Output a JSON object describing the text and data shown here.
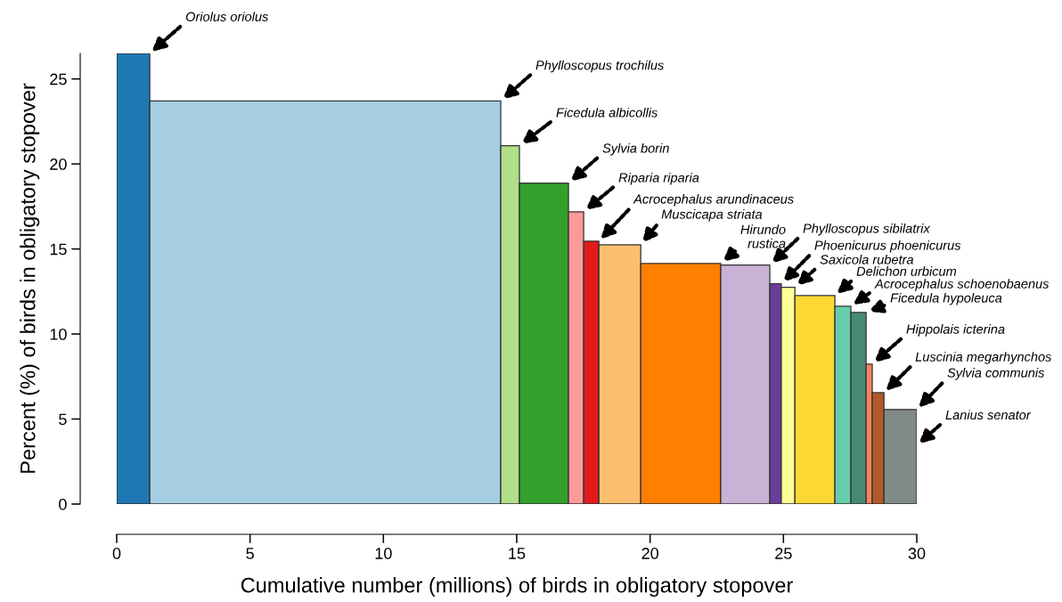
{
  "chart_data": {
    "type": "histogram",
    "xlabel": "Cumulative number (millions) of birds in obligatory stopover",
    "ylabel": "Percent (%) of birds in obligatory stopover",
    "bins": [
      0,
      1.24,
      14.4,
      15.1,
      16.94,
      17.51,
      18.08,
      19.65,
      22.65,
      24.49,
      24.92,
      25.43,
      26.93,
      27.53,
      28.1,
      28.33,
      28.77,
      30.0
    ],
    "values": [
      26.5,
      23.7,
      21.07,
      18.87,
      17.19,
      15.46,
      15.25,
      14.15,
      14.05,
      12.95,
      12.74,
      12.26,
      11.63,
      11.27,
      8.23,
      6.55,
      5.56
    ],
    "colors": [
      "#1f78b4",
      "#a6cee3",
      "#b2df8a",
      "#33a02c",
      "#fb9a99",
      "#e31a1c",
      "#fdbf6f",
      "#ff7f00",
      "#cab2d6",
      "#6a3d9a",
      "#ffff99",
      "#fdd835",
      "#66cdaa",
      "#458b74",
      "#f4845f",
      "#b15928",
      "#808a87"
    ],
    "xlim": [
      0,
      30
    ],
    "ylim": [
      0,
      26.5
    ],
    "xticks": [
      0,
      5,
      10,
      15,
      20,
      25,
      30
    ],
    "yticks": [
      0,
      5,
      10,
      15,
      20,
      25
    ],
    "annotations": [
      "Oriolus oriolus",
      "Phylloscopus trochilus",
      "Ficedula albicollis",
      "Sylvia borin",
      "Riparia riparia",
      "Acrocephalus arundinaceus",
      "Muscicapa striata",
      "Hirundo\nrustica",
      "Phylloscopus sibilatrix",
      "Phoenicurus phoenicurus",
      "Saxicola rubetra",
      "Delichon urbicum",
      "Acrocephalus schoenobaenus",
      "Ficedula hypoleuca",
      "Hippolais icterina",
      "Luscinia megarhynchos",
      "Sylvia communis",
      "Lanius senator"
    ]
  }
}
